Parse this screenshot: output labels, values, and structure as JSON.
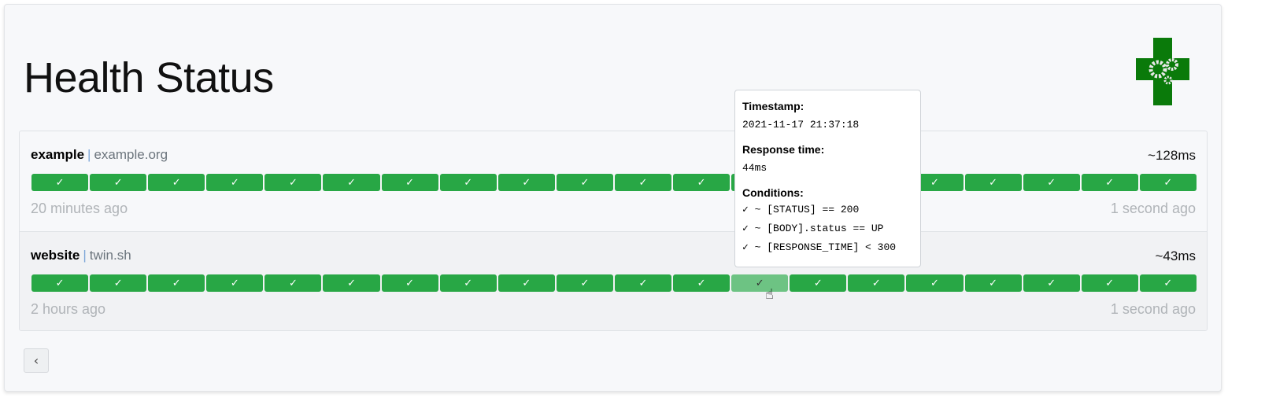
{
  "header": {
    "title": "Health Status",
    "logo": "health-gears-cross-logo"
  },
  "colors": {
    "success": "#28a745",
    "hover": "#6dc383"
  },
  "services": [
    {
      "name": "example",
      "separator": "|",
      "host": "example.org",
      "response_time": "~128ms",
      "oldest": "20 minutes ago",
      "newest": "1 second ago",
      "results": [
        "✓",
        "✓",
        "✓",
        "✓",
        "✓",
        "✓",
        "✓",
        "✓",
        "✓",
        "✓",
        "✓",
        "✓",
        "✓",
        "✓",
        "✓",
        "✓",
        "✓",
        "✓",
        "✓",
        "✓"
      ]
    },
    {
      "name": "website",
      "separator": "|",
      "host": "twin.sh",
      "response_time": "~43ms",
      "oldest": "2 hours ago",
      "newest": "1 second ago",
      "results": [
        "✓",
        "✓",
        "✓",
        "✓",
        "✓",
        "✓",
        "✓",
        "✓",
        "✓",
        "✓",
        "✓",
        "✓",
        "✓",
        "✓",
        "✓",
        "✓",
        "✓",
        "✓",
        "✓",
        "✓"
      ],
      "hovered_index": 12
    }
  ],
  "tooltip": {
    "timestamp_label": "Timestamp:",
    "timestamp": "2021-11-17 21:37:18",
    "response_label": "Response time:",
    "response": "44ms",
    "conditions_label": "Conditions:",
    "conditions": [
      "✓ ~ [STATUS] == 200",
      "✓ ~ [BODY].status == UP",
      "✓ ~ [RESPONSE_TIME] < 300"
    ]
  },
  "pagination": {
    "prev_label": "‹"
  }
}
